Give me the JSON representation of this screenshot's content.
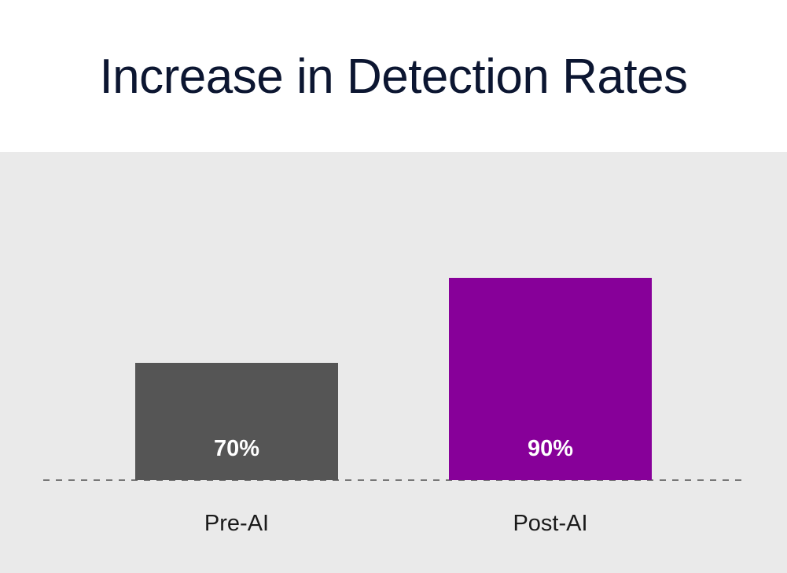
{
  "chart_data": {
    "type": "bar",
    "title": "Increase in Detection Rates",
    "categories": [
      "Pre-AI",
      "Post-AI"
    ],
    "values": [
      70,
      90
    ],
    "value_labels": [
      "70%",
      "90%"
    ],
    "colors": [
      "#555555",
      "#870099"
    ],
    "xlabel": "",
    "ylabel": "",
    "ylim": [
      0,
      100
    ],
    "grid": false,
    "legend": "none"
  }
}
